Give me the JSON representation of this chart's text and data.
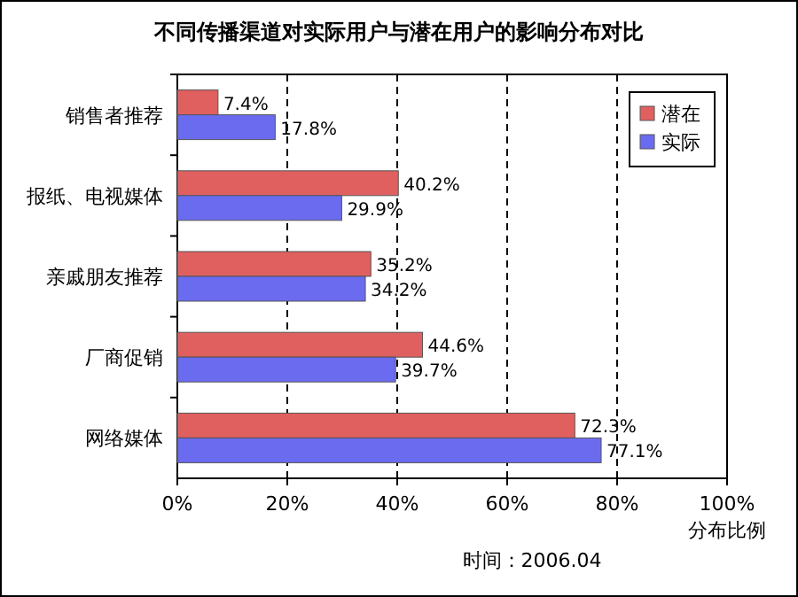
{
  "chart_data": {
    "type": "bar",
    "orientation": "horizontal",
    "title": "不同传播渠道对实际用户与潜在用户的影响分布对比",
    "categories": [
      "销售者推荐",
      "报纸、电视媒体",
      "亲戚朋友推荐",
      "厂商促销",
      "网络媒体"
    ],
    "series": [
      {
        "name": "潜在",
        "color": "#e06060",
        "values": [
          7.4,
          40.2,
          35.2,
          44.6,
          72.3
        ],
        "value_labels": [
          "7.4%",
          "40.2%",
          "35.2%",
          "44.6%",
          "72.3%"
        ]
      },
      {
        "name": "实际",
        "color": "#6b6bf0",
        "values": [
          17.8,
          29.9,
          34.2,
          39.7,
          77.1
        ],
        "value_labels": [
          "17.8%",
          "29.9%",
          "34.2%",
          "39.7%",
          "77.1%"
        ]
      }
    ],
    "xlim": [
      0,
      100
    ],
    "xticks": [
      {
        "value": 0,
        "label": "0%"
      },
      {
        "value": 20,
        "label": "20%"
      },
      {
        "value": 40,
        "label": "40%"
      },
      {
        "value": 60,
        "label": "60%"
      },
      {
        "value": 80,
        "label": "80%"
      },
      {
        "value": 100,
        "label": "100%"
      }
    ],
    "xlabel": "分布比例",
    "grid": "x",
    "legend": "top right",
    "annotations": [
      "时间：2006.04"
    ]
  }
}
